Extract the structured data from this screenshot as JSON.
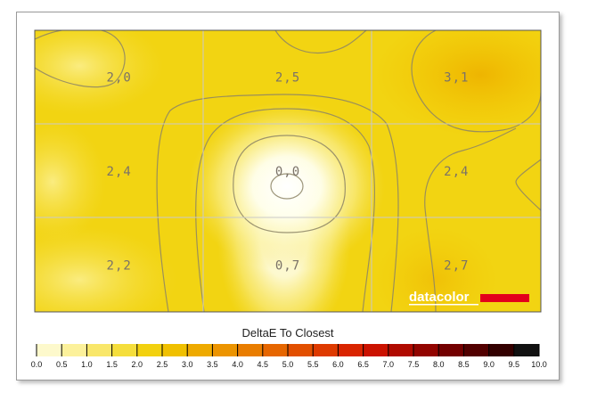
{
  "chart_data": {
    "type": "heatmap",
    "title": "DeltaE To Closest",
    "grid": true,
    "rows": 3,
    "cols": 3,
    "cells": [
      [
        {
          "label": "2,0",
          "value": 2.0
        },
        {
          "label": "2,5",
          "value": 2.5
        },
        {
          "label": "3,1",
          "value": 3.1
        }
      ],
      [
        {
          "label": "2,4",
          "value": 2.4
        },
        {
          "label": "0,0",
          "value": 0.0
        },
        {
          "label": "2,4",
          "value": 2.4
        }
      ],
      [
        {
          "label": "2,2",
          "value": 2.2
        },
        {
          "label": "0,7",
          "value": 0.7
        },
        {
          "label": "2,7",
          "value": 2.7
        }
      ]
    ],
    "colorbar": {
      "range": [
        0,
        10
      ],
      "ticks": [
        "0.0",
        "0.5",
        "1.0",
        "1.5",
        "2.0",
        "2.5",
        "3.0",
        "3.5",
        "4.0",
        "4.5",
        "5.0",
        "5.5",
        "6.0",
        "6.5",
        "7.0",
        "7.5",
        "8.0",
        "8.5",
        "9.0",
        "9.5",
        "10.0"
      ],
      "colors": [
        "#ffffff",
        "#fdf9cc",
        "#fcf19b",
        "#f9e76a",
        "#f5de3c",
        "#f2d10f",
        "#f0c000",
        "#eeaa00",
        "#ec9400",
        "#e97d00",
        "#e66600",
        "#e24f00",
        "#de3a00",
        "#d92400",
        "#cb1200",
        "#b00a00",
        "#920400",
        "#730000",
        "#520000",
        "#330000",
        "#111111"
      ]
    }
  },
  "brand": {
    "text": "datacolor",
    "bar_color": "#e3001b"
  }
}
